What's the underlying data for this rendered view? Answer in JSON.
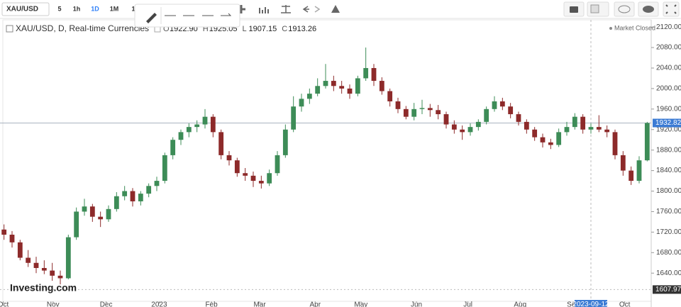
{
  "toolbar": {
    "symbol": "XAU/USD",
    "intervals": [
      "5",
      "1h",
      "1D",
      "1M",
      "1"
    ],
    "active_interval": 2
  },
  "chart_data": {
    "type": "candlestick",
    "title": "XAU/USD, D, Real-time Currencies",
    "ohlc_header": [
      {
        "label": "O",
        "value": "1922.90"
      },
      {
        "label": "H",
        "value": "1925.05"
      },
      {
        "label": "L",
        "value": "1907.15"
      },
      {
        "label": "C",
        "value": "1913.26"
      }
    ],
    "status": "Market Closed",
    "watermark": "Investing.com",
    "colors": {
      "up": "#3d8c57",
      "down": "#8d2a2a"
    },
    "candles": [
      [
        1725,
        1735,
        1705,
        1715
      ],
      [
        1715,
        1722,
        1690,
        1700
      ],
      [
        1700,
        1705,
        1665,
        1670
      ],
      [
        1670,
        1685,
        1652,
        1660
      ],
      [
        1660,
        1672,
        1640,
        1650
      ],
      [
        1650,
        1665,
        1638,
        1645
      ],
      [
        1645,
        1660,
        1625,
        1635
      ],
      [
        1635,
        1645,
        1618,
        1630
      ],
      [
        1630,
        1715,
        1628,
        1710
      ],
      [
        1710,
        1768,
        1705,
        1760
      ],
      [
        1760,
        1785,
        1752,
        1770
      ],
      [
        1770,
        1775,
        1740,
        1750
      ],
      [
        1750,
        1760,
        1730,
        1745
      ],
      [
        1745,
        1772,
        1740,
        1765
      ],
      [
        1765,
        1798,
        1760,
        1790
      ],
      [
        1790,
        1810,
        1782,
        1800
      ],
      [
        1800,
        1806,
        1770,
        1780
      ],
      [
        1780,
        1800,
        1772,
        1795
      ],
      [
        1795,
        1815,
        1788,
        1810
      ],
      [
        1810,
        1828,
        1800,
        1820
      ],
      [
        1820,
        1875,
        1815,
        1870
      ],
      [
        1870,
        1905,
        1862,
        1900
      ],
      [
        1900,
        1920,
        1890,
        1915
      ],
      [
        1915,
        1932,
        1905,
        1925
      ],
      [
        1925,
        1938,
        1915,
        1930
      ],
      [
        1930,
        1960,
        1922,
        1945
      ],
      [
        1945,
        1950,
        1905,
        1915
      ],
      [
        1915,
        1920,
        1862,
        1870
      ],
      [
        1870,
        1878,
        1850,
        1860
      ],
      [
        1860,
        1865,
        1828,
        1835
      ],
      [
        1835,
        1845,
        1820,
        1830
      ],
      [
        1830,
        1838,
        1808,
        1820
      ],
      [
        1820,
        1830,
        1805,
        1815
      ],
      [
        1815,
        1842,
        1810,
        1835
      ],
      [
        1835,
        1878,
        1830,
        1870
      ],
      [
        1870,
        1930,
        1865,
        1920
      ],
      [
        1920,
        1985,
        1915,
        1965
      ],
      [
        1965,
        1990,
        1955,
        1980
      ],
      [
        1980,
        2000,
        1970,
        1990
      ],
      [
        1990,
        2020,
        1985,
        2005
      ],
      [
        2005,
        2048,
        2000,
        2015
      ],
      [
        2015,
        2025,
        1995,
        2005
      ],
      [
        2005,
        2015,
        1990,
        2000
      ],
      [
        2000,
        2008,
        1980,
        1990
      ],
      [
        1990,
        2025,
        1985,
        2020
      ],
      [
        2020,
        2080,
        2015,
        2040
      ],
      [
        2040,
        2048,
        2005,
        2015
      ],
      [
        2015,
        2022,
        1988,
        1995
      ],
      [
        1995,
        2000,
        1965,
        1975
      ],
      [
        1975,
        1982,
        1952,
        1960
      ],
      [
        1960,
        1966,
        1940,
        1945
      ],
      [
        1945,
        1972,
        1938,
        1960
      ],
      [
        1960,
        1978,
        1950,
        1962
      ],
      [
        1962,
        1970,
        1945,
        1958
      ],
      [
        1958,
        1968,
        1940,
        1950
      ],
      [
        1950,
        1955,
        1922,
        1930
      ],
      [
        1930,
        1938,
        1912,
        1920
      ],
      [
        1920,
        1928,
        1900,
        1915
      ],
      [
        1915,
        1932,
        1908,
        1925
      ],
      [
        1925,
        1940,
        1918,
        1935
      ],
      [
        1935,
        1965,
        1930,
        1960
      ],
      [
        1960,
        1985,
        1955,
        1975
      ],
      [
        1975,
        1982,
        1958,
        1965
      ],
      [
        1965,
        1972,
        1942,
        1950
      ],
      [
        1950,
        1955,
        1928,
        1935
      ],
      [
        1935,
        1940,
        1912,
        1920
      ],
      [
        1920,
        1925,
        1898,
        1905
      ],
      [
        1905,
        1912,
        1885,
        1895
      ],
      [
        1895,
        1902,
        1882,
        1890
      ],
      [
        1890,
        1922,
        1886,
        1915
      ],
      [
        1915,
        1935,
        1908,
        1925
      ],
      [
        1925,
        1952,
        1920,
        1945
      ],
      [
        1945,
        1950,
        1912,
        1920
      ],
      [
        1920,
        1932,
        1912,
        1925
      ],
      [
        1925,
        1948,
        1915,
        1920
      ],
      [
        1920,
        1928,
        1905,
        1915
      ],
      [
        1915,
        1920,
        1862,
        1870
      ],
      [
        1870,
        1878,
        1830,
        1840
      ],
      [
        1840,
        1848,
        1812,
        1820
      ],
      [
        1820,
        1868,
        1815,
        1860
      ],
      [
        1860,
        1935,
        1858,
        1932.82
      ]
    ],
    "xlim": [
      -0.5,
      80.5
    ],
    "xticks": [
      {
        "value": -0.1,
        "label": "Oct"
      },
      {
        "value": 6.1,
        "label": "Nov"
      },
      {
        "value": 12.7,
        "label": "Dec"
      },
      {
        "value": 19.3,
        "label": "2023"
      },
      {
        "value": 25.8,
        "label": "Feb"
      },
      {
        "value": 31.8,
        "label": "Mar"
      },
      {
        "value": 38.7,
        "label": "Apr"
      },
      {
        "value": 44.4,
        "label": "May"
      },
      {
        "value": 51.3,
        "label": "Jun"
      },
      {
        "value": 57.7,
        "label": "Jul"
      },
      {
        "value": 64.2,
        "label": "Aug"
      },
      {
        "value": 70.8,
        "label": "Sep"
      },
      {
        "value": 77.2,
        "label": "Oct"
      }
    ],
    "ylim": [
      1585,
      2134
    ],
    "yticks": [
      {
        "value": 1640,
        "label": "1640.00"
      },
      {
        "value": 1680,
        "label": "1680.00"
      },
      {
        "value": 1720,
        "label": "1720.00"
      },
      {
        "value": 1760,
        "label": "1760.00"
      },
      {
        "value": 1800,
        "label": "1800.00"
      },
      {
        "value": 1840,
        "label": "1840.00"
      },
      {
        "value": 1880,
        "label": "1880.00"
      },
      {
        "value": 1920,
        "label": "1920.00"
      },
      {
        "value": 1960,
        "label": "1960.00"
      },
      {
        "value": 2000,
        "label": "2000.00"
      },
      {
        "value": 2040,
        "label": "2040.00"
      },
      {
        "value": 2080,
        "label": "2080.00"
      },
      {
        "value": 2120,
        "label": "2120.00"
      }
    ],
    "price_line": 1932.82,
    "low_line": 1607.97,
    "crosshair": {
      "value": 73,
      "label": "2023-09-12"
    }
  }
}
